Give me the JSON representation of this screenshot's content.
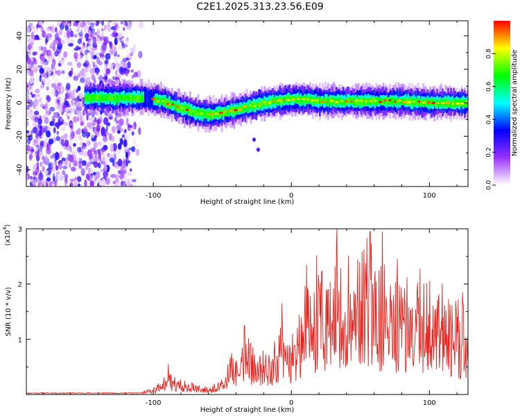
{
  "figure": {
    "title": "C2E1.2025.313.23.56.E09"
  },
  "chart_data": [
    {
      "type": "heatmap",
      "title": "C2E1.2025.313.23.56.E09",
      "xlabel": "Height of straight line (km)",
      "ylabel": "Frequency (Hz)",
      "xlim": [
        -192,
        128
      ],
      "ylim": [
        -50,
        49
      ],
      "x_ticks": [
        -100,
        0,
        100
      ],
      "y_ticks": [
        -40,
        -20,
        0,
        20,
        40
      ],
      "colorbar": {
        "label": "Normalized spectral amplitude",
        "range": [
          0.0,
          1.0
        ],
        "ticks": [
          0.0,
          0.2,
          0.4,
          0.6,
          0.8
        ],
        "tick_labels": [
          "0.0",
          "0.2",
          "0.4",
          "0.6",
          "0.8"
        ],
        "colors": [
          "#ffffff",
          "#9933ff",
          "#0000ff",
          "#00ffff",
          "#00ff00",
          "#ffff00",
          "#ff0000"
        ]
      },
      "noise_region_x": [
        -192,
        -108
      ],
      "band_trace": {
        "x": [
          -192,
          -150,
          -110,
          -100,
          -90,
          -80,
          -70,
          -60,
          -50,
          -40,
          -30,
          -25,
          -20,
          -10,
          0,
          10,
          20,
          40,
          60,
          80,
          100,
          128
        ],
        "freq": [
          3,
          3,
          3,
          2,
          0,
          -3,
          -6,
          -7,
          -6,
          -4,
          -2,
          -1,
          0,
          1,
          2,
          2,
          1,
          1,
          1,
          1,
          0,
          0
        ]
      },
      "outliers": [
        {
          "x": -27,
          "freq": -22
        },
        {
          "x": -24,
          "freq": -28
        },
        {
          "x": -23,
          "freq": 7
        }
      ]
    },
    {
      "type": "line",
      "xlabel": "Height of straight line (km)",
      "ylabel": "SNR (10 * v/v)",
      "y_multiplier": "(x10",
      "y_multiplier_exp": "4",
      "xlim": [
        -192,
        128
      ],
      "ylim": [
        0,
        3
      ],
      "x_ticks": [
        -100,
        0,
        100
      ],
      "y_ticks": [
        1,
        2,
        3
      ],
      "color": "#e8231e",
      "envelope": {
        "x": [
          -192,
          -110,
          -100,
          -90,
          -80,
          -70,
          -60,
          -50,
          -45,
          -40,
          -35,
          -30,
          -25,
          -20,
          -15,
          -10,
          -5,
          0,
          5,
          10,
          15,
          20,
          25,
          30,
          35,
          40,
          50,
          60,
          70,
          80,
          90,
          100,
          110,
          120,
          128
        ],
        "y": [
          0.04,
          0.05,
          0.12,
          0.45,
          0.3,
          0.2,
          0.15,
          0.3,
          0.7,
          0.85,
          1.0,
          1.1,
          0.85,
          0.9,
          1.0,
          1.35,
          1.55,
          1.1,
          1.8,
          2.1,
          2.35,
          2.7,
          2.85,
          3.0,
          2.75,
          2.8,
          2.95,
          2.85,
          2.6,
          2.45,
          2.55,
          2.3,
          2.0,
          1.9,
          1.8
        ]
      },
      "peaks": [
        {
          "x": -89,
          "y": 0.55
        },
        {
          "x": -34,
          "y": 1.25
        },
        {
          "x": -7,
          "y": 1.65
        },
        {
          "x": 11,
          "y": 2.35
        },
        {
          "x": 33,
          "y": 3.0
        },
        {
          "x": 57,
          "y": 2.95
        },
        {
          "x": 66,
          "y": 2.95
        },
        {
          "x": 124,
          "y": 1.85
        }
      ]
    }
  ]
}
